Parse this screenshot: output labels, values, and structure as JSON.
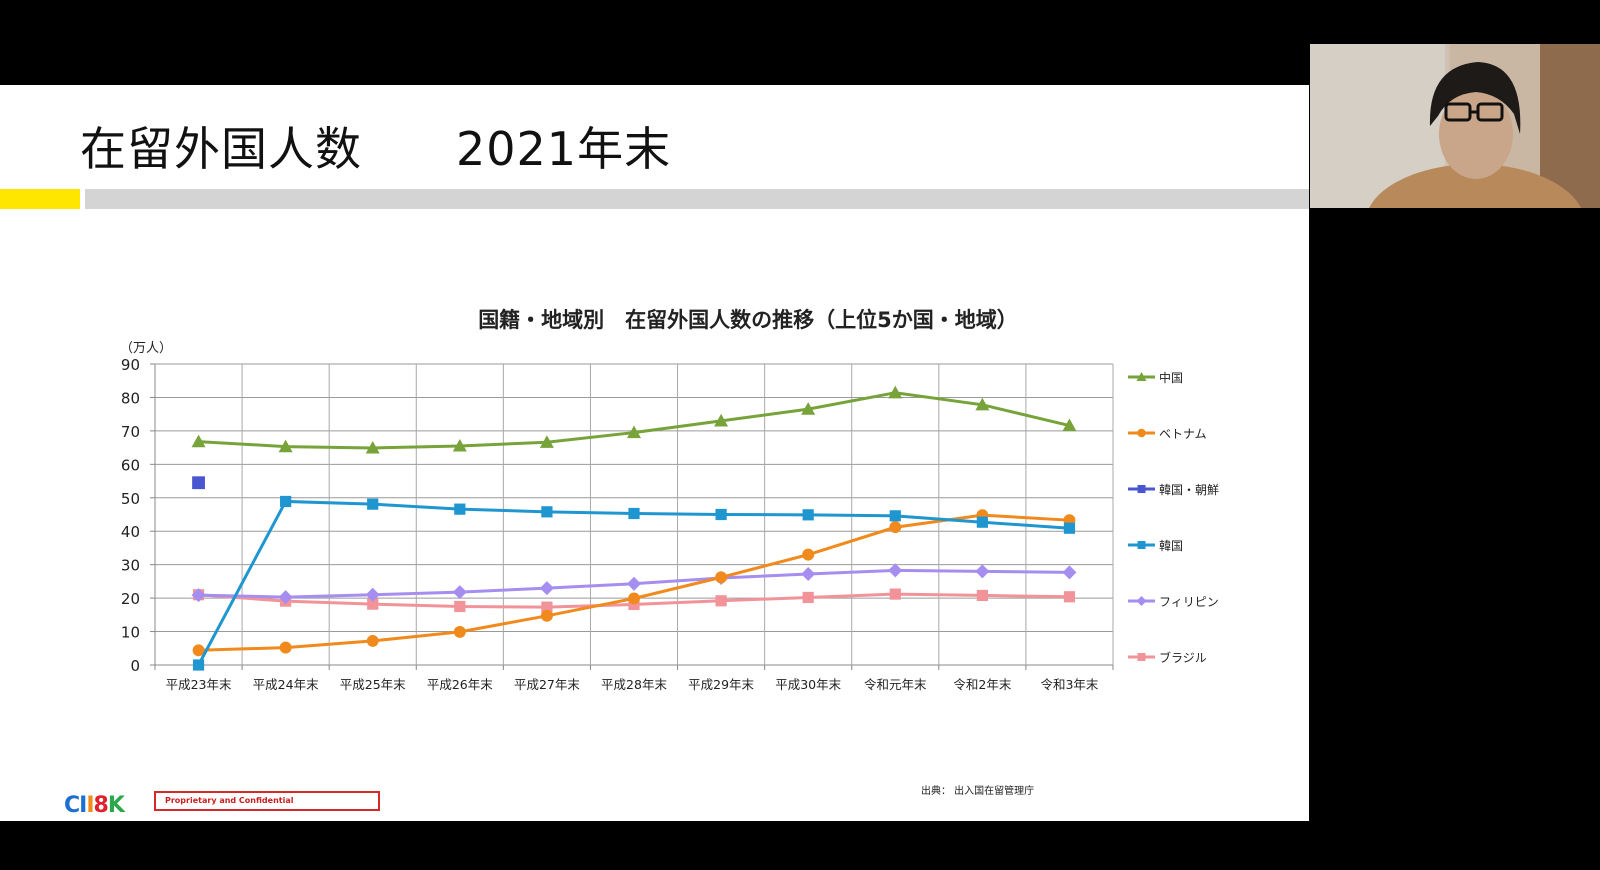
{
  "slide": {
    "title": "在留外国人数　　2021年末",
    "source": "出典：  出入国在留管理庁",
    "confidential": "Proprietary and Confidential",
    "logo": {
      "parts": [
        "C",
        "I",
        "I",
        "8",
        "K"
      ],
      "colors": [
        "#1e6fd0",
        "#1e6fd0",
        "#f18c1a",
        "#e0202a",
        "#2aa84a"
      ]
    }
  },
  "chart_data": {
    "type": "line",
    "title": "国籍・地域別　在留外国人数の推移（上位5か国・地域）",
    "ylabel": "（万人）",
    "ylim": [
      0,
      90
    ],
    "yticks": [
      0,
      10,
      20,
      30,
      40,
      50,
      60,
      70,
      80,
      90
    ],
    "grid": true,
    "legend_position": "right",
    "categories": [
      "平成23年末",
      "平成24年末",
      "平成25年末",
      "平成26年末",
      "平成27年末",
      "平成28年末",
      "平成29年末",
      "平成30年末",
      "令和元年末",
      "令和2年末",
      "令和3年末"
    ],
    "series": [
      {
        "name": "中国",
        "color": "#77a33a",
        "marker": "triangle",
        "values": [
          66.8,
          65.3,
          64.9,
          65.5,
          66.6,
          69.5,
          73.0,
          76.5,
          81.4,
          77.8,
          71.6
        ]
      },
      {
        "name": "ベトナム",
        "color": "#f08a1c",
        "marker": "circle",
        "values": [
          4.4,
          5.2,
          7.2,
          9.9,
          14.7,
          19.9,
          26.2,
          33.0,
          41.2,
          44.8,
          43.3
        ]
      },
      {
        "name": "韓国・朝鮮",
        "color": "#4a55d0",
        "marker": "square",
        "values": [
          54.5,
          null,
          null,
          null,
          null,
          null,
          null,
          null,
          null,
          null,
          null
        ]
      },
      {
        "name": "韓国",
        "color": "#1f96d0",
        "marker": "square",
        "values": [
          0,
          48.9,
          48.1,
          46.6,
          45.8,
          45.3,
          45.0,
          44.9,
          44.6,
          42.7,
          40.9
        ]
      },
      {
        "name": "フィリピン",
        "color": "#a58ef0",
        "marker": "diamond",
        "values": [
          20.9,
          20.3,
          21.0,
          21.8,
          23.0,
          24.3,
          26.0,
          27.2,
          28.3,
          28.0,
          27.7
        ]
      },
      {
        "name": "ブラジル",
        "color": "#f2939a",
        "marker": "square",
        "values": [
          21.0,
          19.1,
          18.2,
          17.5,
          17.3,
          18.1,
          19.2,
          20.2,
          21.2,
          20.8,
          20.4
        ]
      }
    ]
  }
}
